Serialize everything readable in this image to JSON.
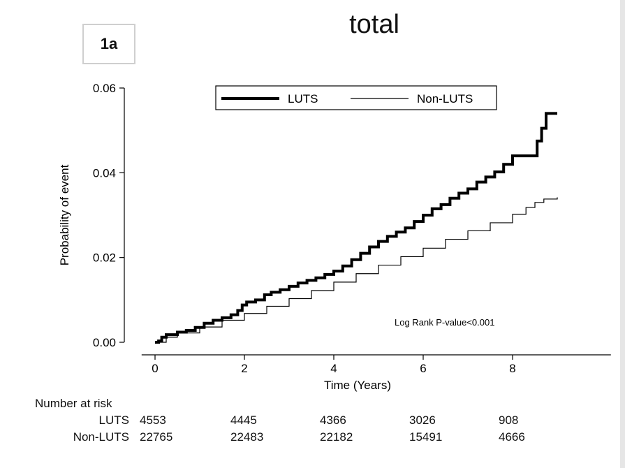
{
  "panel_label": "1a",
  "chart_data": {
    "type": "line",
    "title": "total",
    "xlabel": "Time (Years)",
    "ylabel": "Probability of event",
    "xlim": [
      0,
      10.2
    ],
    "ylim": [
      0,
      0.06
    ],
    "x_ticks": [
      0,
      2,
      4,
      6,
      8
    ],
    "x_tick_labels": [
      "0",
      "2",
      "4",
      "6",
      "8"
    ],
    "y_ticks": [
      0,
      0.02,
      0.04,
      0.06
    ],
    "y_tick_labels": [
      "0.00",
      "0.02",
      "0.04",
      "0.06"
    ],
    "legend_position": "top",
    "annotation": "Log Rank P-value<0.001",
    "series": [
      {
        "name": "LUTS",
        "color": "#000000",
        "style": "thick",
        "x": [
          0,
          0.08,
          0.15,
          0.25,
          0.35,
          0.5,
          0.7,
          0.9,
          1.1,
          1.3,
          1.5,
          1.7,
          1.85,
          1.95,
          2.05,
          2.25,
          2.45,
          2.6,
          2.8,
          3.0,
          3.2,
          3.4,
          3.6,
          3.8,
          4.0,
          4.2,
          4.4,
          4.6,
          4.8,
          5.0,
          5.2,
          5.4,
          5.6,
          5.8,
          6.0,
          6.2,
          6.4,
          6.6,
          6.8,
          7.0,
          7.2,
          7.4,
          7.6,
          7.8,
          8.0,
          8.2,
          8.35,
          8.45,
          8.55,
          8.65,
          8.75,
          9.0
        ],
        "y": [
          0,
          0.0003,
          0.0012,
          0.0018,
          0.0018,
          0.0024,
          0.0028,
          0.0035,
          0.0045,
          0.0052,
          0.0058,
          0.0065,
          0.0075,
          0.0088,
          0.0095,
          0.01,
          0.0112,
          0.0118,
          0.0124,
          0.0132,
          0.014,
          0.0146,
          0.0152,
          0.016,
          0.0168,
          0.018,
          0.0195,
          0.021,
          0.0225,
          0.0238,
          0.025,
          0.026,
          0.027,
          0.0285,
          0.03,
          0.0315,
          0.0325,
          0.034,
          0.0352,
          0.0362,
          0.0378,
          0.039,
          0.0402,
          0.042,
          0.044,
          0.044,
          0.044,
          0.044,
          0.0475,
          0.0505,
          0.054,
          0.054
        ]
      },
      {
        "name": "Non-LUTS",
        "color": "#000000",
        "style": "thin",
        "x": [
          0,
          0.25,
          0.5,
          1.0,
          1.5,
          2.0,
          2.5,
          3.0,
          3.5,
          4.0,
          4.5,
          5.0,
          5.5,
          6.0,
          6.5,
          7.0,
          7.5,
          8.0,
          8.3,
          8.5,
          8.7,
          9.0
        ],
        "y": [
          0,
          0.0012,
          0.0022,
          0.0036,
          0.0052,
          0.0068,
          0.0085,
          0.0103,
          0.0122,
          0.0142,
          0.0162,
          0.0182,
          0.0202,
          0.0222,
          0.0243,
          0.0263,
          0.0282,
          0.0302,
          0.0318,
          0.033,
          0.0338,
          0.0342
        ]
      }
    ],
    "risk_table": {
      "header": "Number at risk",
      "times": [
        0,
        2,
        4,
        6,
        8
      ],
      "rows": [
        {
          "label": "LUTS",
          "values": [
            "4553",
            "4445",
            "4366",
            "3026",
            "908"
          ]
        },
        {
          "label": "Non-LUTS",
          "values": [
            "22765",
            "22483",
            "22182",
            "15491",
            "4666"
          ]
        }
      ]
    }
  }
}
